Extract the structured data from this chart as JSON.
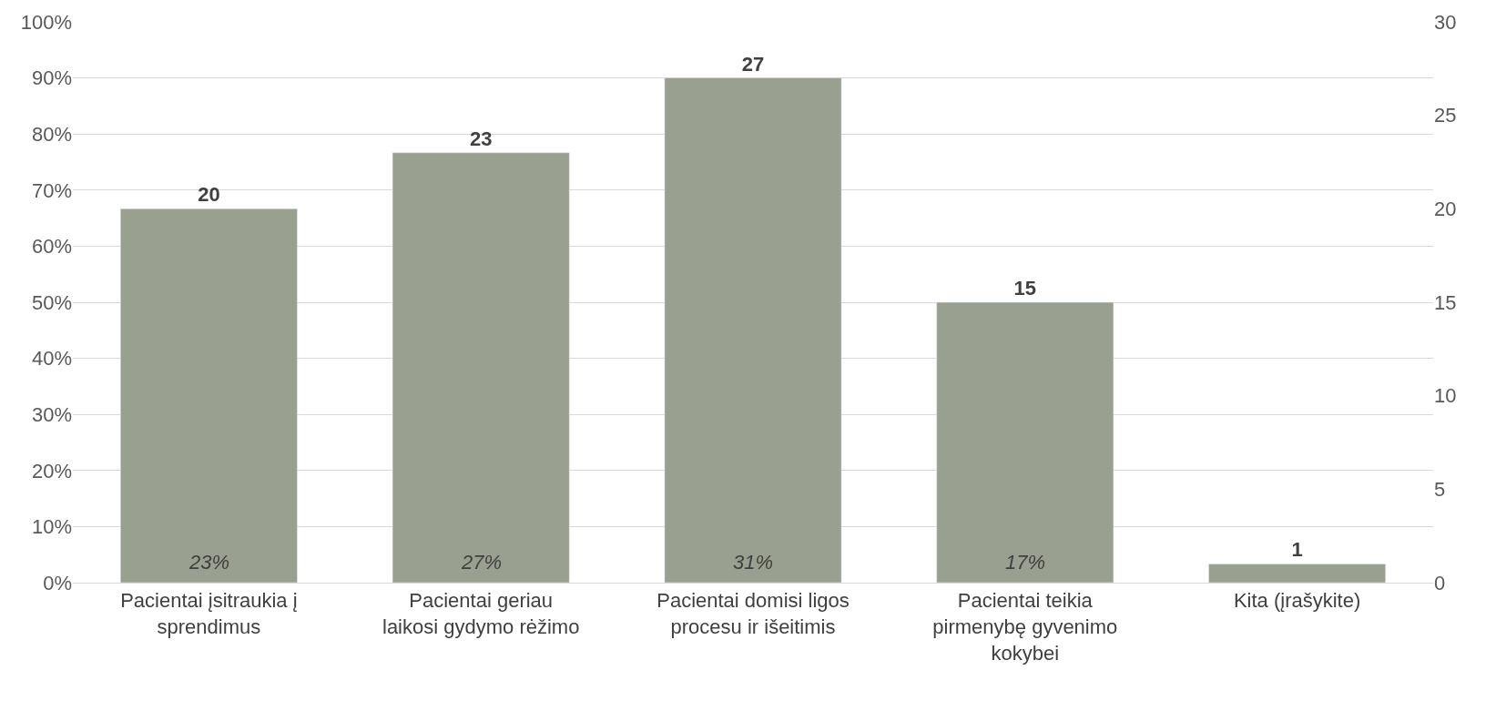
{
  "chart_data": {
    "type": "bar",
    "categories": [
      "Pacientai įsitraukia į sprendimus",
      "Pacientai geriau laikosi gydymo rėžimo",
      "Pacientai domisi ligos procesu ir išeitimis",
      "Pacientai teikia pirmenybę gyvenimo kokybei",
      "Kita (įrašykite)"
    ],
    "series": [
      {
        "color": "#9aa08f",
        "axis": "y2",
        "values": [
          20,
          23,
          27,
          15,
          1
        ]
      }
    ],
    "data_labels": true,
    "ylim": [
      0,
      100
    ],
    "yticks": [
      {
        "value": 0,
        "label": "0%"
      },
      {
        "value": 10,
        "label": "10%"
      },
      {
        "value": 20,
        "label": "20%"
      },
      {
        "value": 30,
        "label": "30%"
      },
      {
        "value": 40,
        "label": "40%"
      },
      {
        "value": 50,
        "label": "50%"
      },
      {
        "value": 60,
        "label": "60%"
      },
      {
        "value": 70,
        "label": "70%"
      },
      {
        "value": 80,
        "label": "80%"
      },
      {
        "value": 90,
        "label": "90%"
      },
      {
        "value": 100,
        "label": "100%"
      }
    ],
    "y2lim": [
      0,
      30
    ],
    "y2ticks": [
      0,
      5,
      10,
      15,
      20,
      25,
      30
    ],
    "annotations": [
      "23%",
      "27%",
      "31%",
      "17%"
    ],
    "grid": "y",
    "legend": false
  }
}
